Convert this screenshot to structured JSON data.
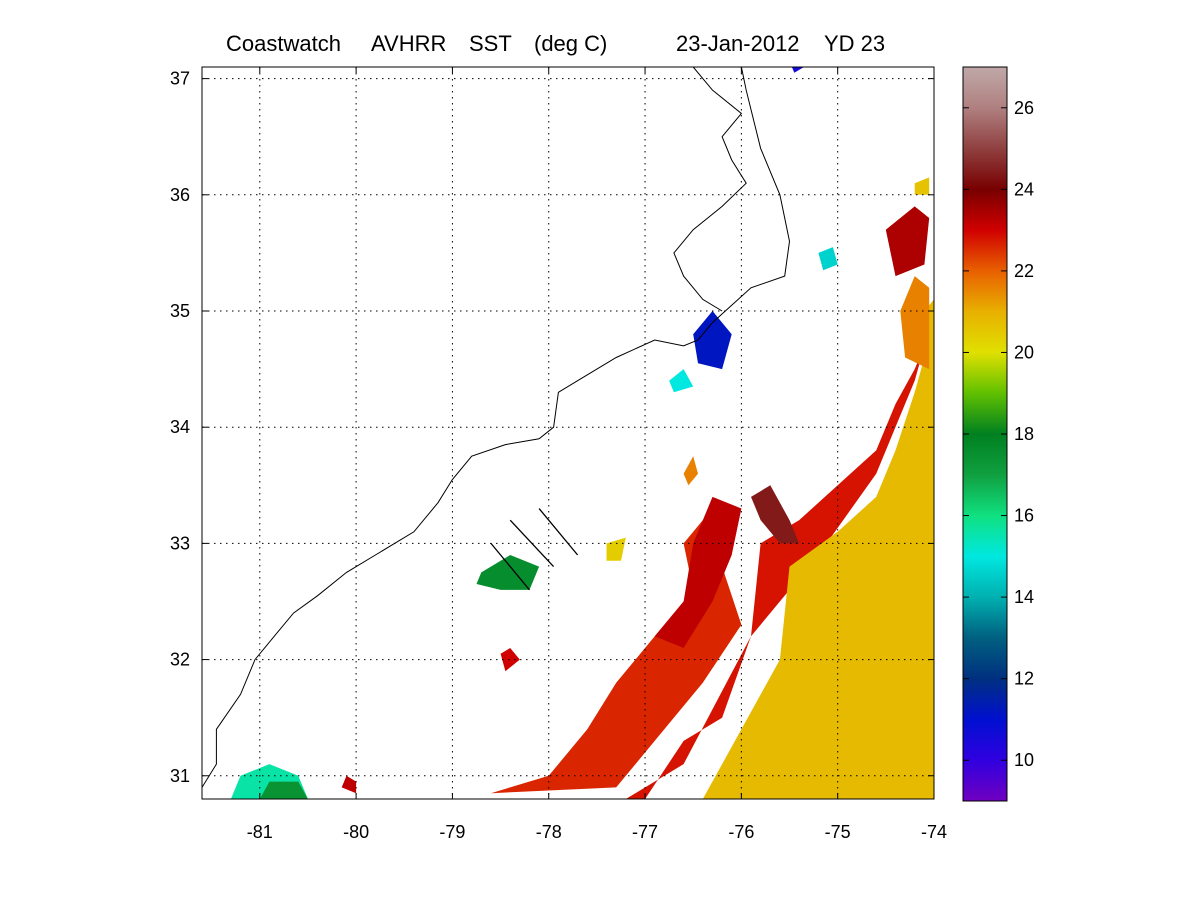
{
  "title": {
    "parts": [
      "Coastwatch",
      "AVHRR",
      "SST",
      "(deg C)",
      "23-Jan-2012",
      "YD 23"
    ]
  },
  "map": {
    "lon_range": [
      -81.6,
      -74
    ],
    "lat_range": [
      30.8,
      37.1
    ],
    "grid": "dotted",
    "x_ticks": [
      {
        "value": -81,
        "label": "-81"
      },
      {
        "value": -80,
        "label": "-80"
      },
      {
        "value": -79,
        "label": "-79"
      },
      {
        "value": -78,
        "label": "-78"
      },
      {
        "value": -77,
        "label": "-77"
      },
      {
        "value": -76,
        "label": "-76"
      },
      {
        "value": -75,
        "label": "-75"
      },
      {
        "value": -74,
        "label": "-74"
      }
    ],
    "y_ticks": [
      {
        "value": 31,
        "label": "31"
      },
      {
        "value": 32,
        "label": "32"
      },
      {
        "value": 33,
        "label": "33"
      },
      {
        "value": 34,
        "label": "34"
      },
      {
        "value": 35,
        "label": "35"
      },
      {
        "value": 36,
        "label": "36"
      },
      {
        "value": 37,
        "label": "37"
      }
    ]
  },
  "colorbar": {
    "range": [
      9,
      27
    ],
    "ticks": [
      {
        "value": 10,
        "label": "10"
      },
      {
        "value": 12,
        "label": "12"
      },
      {
        "value": 14,
        "label": "14"
      },
      {
        "value": 16,
        "label": "16"
      },
      {
        "value": 18,
        "label": "18"
      },
      {
        "value": 20,
        "label": "20"
      },
      {
        "value": 22,
        "label": "22"
      },
      {
        "value": 24,
        "label": "24"
      },
      {
        "value": 26,
        "label": "26"
      }
    ],
    "stops": [
      {
        "value": 9,
        "color": "#7000c0"
      },
      {
        "value": 10,
        "color": "#3000e0"
      },
      {
        "value": 11,
        "color": "#0010d0"
      },
      {
        "value": 12,
        "color": "#003080"
      },
      {
        "value": 13,
        "color": "#006080"
      },
      {
        "value": 14,
        "color": "#00b0b0"
      },
      {
        "value": 15,
        "color": "#00e8e0"
      },
      {
        "value": 16,
        "color": "#10e080"
      },
      {
        "value": 17,
        "color": "#10a040"
      },
      {
        "value": 18,
        "color": "#008020"
      },
      {
        "value": 19,
        "color": "#60c000"
      },
      {
        "value": 20,
        "color": "#e0e000"
      },
      {
        "value": 21,
        "color": "#e8b000"
      },
      {
        "value": 22,
        "color": "#e86000"
      },
      {
        "value": 23,
        "color": "#d00000"
      },
      {
        "value": 24,
        "color": "#780000"
      },
      {
        "value": 25,
        "color": "#904040"
      },
      {
        "value": 26,
        "color": "#b08080"
      },
      {
        "value": 27,
        "color": "#c0a8a8"
      }
    ]
  },
  "sst_regions": [
    {
      "name": "gulf-stream-warm-edge",
      "temp": 22.8,
      "points": [
        [
          -77.0,
          30.8
        ],
        [
          -76.6,
          31.3
        ],
        [
          -76.2,
          31.5
        ],
        [
          -75.9,
          32.2
        ],
        [
          -75.8,
          33.0
        ],
        [
          -75.4,
          33.2
        ],
        [
          -75.0,
          33.5
        ],
        [
          -74.6,
          33.8
        ],
        [
          -74.4,
          34.2
        ],
        [
          -74.2,
          34.5
        ],
        [
          -74.1,
          34.7
        ],
        [
          -74.2,
          34.4
        ],
        [
          -74.6,
          33.6
        ],
        [
          -75.2,
          32.9
        ],
        [
          -75.9,
          32.2
        ],
        [
          -76.6,
          31.1
        ],
        [
          -77.2,
          30.8
        ]
      ]
    },
    {
      "name": "sargasso-warm-water",
      "temp": 20.8,
      "points": [
        [
          -76.4,
          30.8
        ],
        [
          -76.0,
          31.4
        ],
        [
          -75.6,
          32.0
        ],
        [
          -75.5,
          32.8
        ],
        [
          -75.0,
          33.1
        ],
        [
          -74.6,
          33.4
        ],
        [
          -74.4,
          33.8
        ],
        [
          -74.2,
          34.3
        ],
        [
          -74.1,
          34.6
        ],
        [
          -74.1,
          35.0
        ],
        [
          -74.0,
          35.1
        ],
        [
          -74.0,
          30.8
        ]
      ]
    },
    {
      "name": "eastern-warm-lobe",
      "temp": 21.6,
      "points": [
        [
          -74.35,
          35.0
        ],
        [
          -74.2,
          35.3
        ],
        [
          -74.05,
          35.2
        ],
        [
          -74.05,
          34.5
        ],
        [
          -74.3,
          34.6
        ]
      ]
    },
    {
      "name": "shelf-edge-warm-patches",
      "temp": 22.6,
      "points": [
        [
          -78.6,
          30.85
        ],
        [
          -78.0,
          31.0
        ],
        [
          -77.6,
          31.4
        ],
        [
          -77.3,
          31.8
        ],
        [
          -76.8,
          32.3
        ],
        [
          -76.5,
          32.6
        ],
        [
          -76.6,
          33.0
        ],
        [
          -76.3,
          33.3
        ],
        [
          -76.2,
          32.8
        ],
        [
          -76.0,
          32.3
        ],
        [
          -76.4,
          31.8
        ],
        [
          -76.9,
          31.3
        ],
        [
          -77.3,
          30.9
        ]
      ]
    },
    {
      "name": "offshore-warm-filament",
      "temp": 23.2,
      "points": [
        [
          -76.9,
          32.2
        ],
        [
          -76.6,
          32.5
        ],
        [
          -76.5,
          33.0
        ],
        [
          -76.3,
          33.4
        ],
        [
          -76.0,
          33.3
        ],
        [
          -76.1,
          32.9
        ],
        [
          -76.3,
          32.5
        ],
        [
          -76.6,
          32.1
        ]
      ]
    },
    {
      "name": "maroon-warm-core",
      "temp": 24.4,
      "points": [
        [
          -75.9,
          33.4
        ],
        [
          -75.7,
          33.5
        ],
        [
          -75.5,
          33.2
        ],
        [
          -75.4,
          33.0
        ],
        [
          -75.6,
          33.0
        ],
        [
          -75.8,
          33.2
        ]
      ]
    },
    {
      "name": "cool-shelf-patch",
      "temp": 17.6,
      "points": [
        [
          -78.7,
          32.75
        ],
        [
          -78.4,
          32.9
        ],
        [
          -78.1,
          32.8
        ],
        [
          -78.2,
          32.6
        ],
        [
          -78.5,
          32.6
        ],
        [
          -78.75,
          32.65
        ]
      ]
    },
    {
      "name": "nearshore-cool-patch",
      "temp": 15.6,
      "points": [
        [
          -81.3,
          30.8
        ],
        [
          -81.2,
          31.0
        ],
        [
          -80.9,
          31.1
        ],
        [
          -80.6,
          31.0
        ],
        [
          -80.5,
          30.8
        ]
      ]
    },
    {
      "name": "nearshore-green-patch",
      "temp": 17.4,
      "points": [
        [
          -81.0,
          30.8
        ],
        [
          -80.9,
          30.95
        ],
        [
          -80.6,
          30.95
        ],
        [
          -80.5,
          30.8
        ]
      ]
    },
    {
      "name": "small-warm-patch-sc",
      "temp": 23.2,
      "points": [
        [
          -80.15,
          30.9
        ],
        [
          -80.1,
          31.0
        ],
        [
          -80.0,
          30.95
        ],
        [
          -80.0,
          30.85
        ]
      ]
    },
    {
      "name": "small-yellow-patch",
      "temp": 20.4,
      "points": [
        [
          -77.4,
          33.0
        ],
        [
          -77.2,
          33.05
        ],
        [
          -77.25,
          32.85
        ],
        [
          -77.4,
          32.85
        ]
      ]
    },
    {
      "name": "small-orange-patch",
      "temp": 21.6,
      "points": [
        [
          -76.6,
          33.6
        ],
        [
          -76.5,
          33.75
        ],
        [
          -76.45,
          33.6
        ],
        [
          -76.55,
          33.5
        ]
      ]
    },
    {
      "name": "cape-hatteras-cool-patch",
      "temp": 15.0,
      "points": [
        [
          -76.75,
          34.4
        ],
        [
          -76.6,
          34.5
        ],
        [
          -76.5,
          34.35
        ],
        [
          -76.7,
          34.3
        ]
      ]
    },
    {
      "name": "outer-banks-cold-pixels",
      "temp": 11.2,
      "points": [
        [
          -76.5,
          34.8
        ],
        [
          -76.3,
          35.0
        ],
        [
          -76.1,
          34.8
        ],
        [
          -76.2,
          34.5
        ],
        [
          -76.45,
          34.55
        ]
      ]
    },
    {
      "name": "northern-blue-patch",
      "temp": 10.6,
      "points": [
        [
          -75.5,
          37.15
        ],
        [
          -75.4,
          37.25
        ],
        [
          -75.35,
          37.1
        ],
        [
          -75.45,
          37.05
        ]
      ]
    },
    {
      "name": "northern-teal-patch",
      "temp": 14.6,
      "points": [
        [
          -75.2,
          35.5
        ],
        [
          -75.05,
          35.55
        ],
        [
          -75.0,
          35.4
        ],
        [
          -75.15,
          35.35
        ]
      ]
    },
    {
      "name": "northern-red-edge",
      "temp": 23.4,
      "points": [
        [
          -74.5,
          35.7
        ],
        [
          -74.2,
          35.9
        ],
        [
          -74.05,
          35.8
        ],
        [
          -74.1,
          35.4
        ],
        [
          -74.4,
          35.3
        ]
      ]
    },
    {
      "name": "northern-yellow-dot",
      "temp": 20.6,
      "points": [
        [
          -74.2,
          36.1
        ],
        [
          -74.05,
          36.15
        ],
        [
          -74.05,
          36.0
        ],
        [
          -74.2,
          36.0
        ]
      ]
    },
    {
      "name": "offshore-red-blob",
      "temp": 23.0,
      "points": [
        [
          -78.5,
          32.05
        ],
        [
          -78.4,
          32.1
        ],
        [
          -78.3,
          32.0
        ],
        [
          -78.45,
          31.9
        ]
      ]
    }
  ],
  "coastline": [
    [
      -81.6,
      30.9
    ],
    [
      -81.45,
      31.1
    ],
    [
      -81.45,
      31.4
    ],
    [
      -81.2,
      31.7
    ],
    [
      -81.05,
      32.0
    ],
    [
      -80.85,
      32.2
    ],
    [
      -80.65,
      32.4
    ],
    [
      -80.4,
      32.55
    ],
    [
      -80.1,
      32.75
    ],
    [
      -79.8,
      32.9
    ],
    [
      -79.4,
      33.1
    ],
    [
      -79.15,
      33.35
    ],
    [
      -79.0,
      33.55
    ],
    [
      -78.8,
      33.75
    ],
    [
      -78.45,
      33.85
    ],
    [
      -78.1,
      33.9
    ],
    [
      -77.95,
      34.0
    ],
    [
      -77.9,
      34.3
    ],
    [
      -77.7,
      34.4
    ],
    [
      -77.3,
      34.6
    ],
    [
      -76.9,
      34.75
    ],
    [
      -76.6,
      34.7
    ],
    [
      -76.45,
      34.75
    ],
    [
      -76.3,
      34.9
    ],
    [
      -75.9,
      35.2
    ],
    [
      -75.55,
      35.3
    ],
    [
      -75.5,
      35.6
    ],
    [
      -75.6,
      36.0
    ],
    [
      -75.8,
      36.4
    ],
    [
      -75.95,
      36.9
    ],
    [
      -76.0,
      37.1
    ]
  ],
  "sound_shore": [
    [
      -76.2,
      35.0
    ],
    [
      -76.4,
      35.1
    ],
    [
      -76.6,
      35.3
    ],
    [
      -76.7,
      35.5
    ],
    [
      -76.5,
      35.7
    ],
    [
      -76.2,
      35.9
    ],
    [
      -75.95,
      36.1
    ],
    [
      -76.1,
      36.3
    ],
    [
      -76.2,
      36.5
    ],
    [
      -76.0,
      36.7
    ],
    [
      -76.3,
      36.9
    ],
    [
      -76.5,
      37.1
    ]
  ],
  "transects": [
    {
      "start": [
        -78.4,
        33.2
      ],
      "end": [
        -77.95,
        32.8
      ]
    },
    {
      "start": [
        -78.6,
        33.0
      ],
      "end": [
        -78.2,
        32.6
      ]
    },
    {
      "start": [
        -78.1,
        33.3
      ],
      "end": [
        -77.7,
        32.9
      ]
    }
  ]
}
